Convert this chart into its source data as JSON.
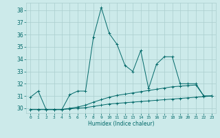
{
  "xlabel": "Humidex (Indice chaleur)",
  "x_values": [
    0,
    1,
    2,
    3,
    4,
    5,
    6,
    7,
    8,
    9,
    10,
    11,
    12,
    13,
    14,
    15,
    16,
    17,
    18,
    19,
    20,
    21,
    22,
    23
  ],
  "line1": [
    30.9,
    31.4,
    29.9,
    29.9,
    29.9,
    31.1,
    31.4,
    31.4,
    35.8,
    38.2,
    36.1,
    35.2,
    33.5,
    33.0,
    34.7,
    31.6,
    33.6,
    34.2,
    34.2,
    32.0,
    32.0,
    32.0,
    31.0,
    31.0
  ],
  "line2": [
    29.9,
    29.9,
    29.9,
    29.9,
    29.9,
    30.0,
    30.1,
    30.25,
    30.5,
    30.7,
    30.9,
    31.05,
    31.15,
    31.25,
    31.35,
    31.45,
    31.55,
    31.65,
    31.75,
    31.8,
    31.85,
    31.9,
    31.0,
    31.0
  ],
  "line3": [
    29.9,
    29.9,
    29.9,
    29.9,
    29.9,
    29.95,
    30.0,
    30.05,
    30.15,
    30.25,
    30.35,
    30.4,
    30.45,
    30.5,
    30.55,
    30.6,
    30.65,
    30.7,
    30.75,
    30.8,
    30.85,
    30.9,
    30.95,
    31.0
  ],
  "line_color": "#006868",
  "bg_color": "#cceaea",
  "grid_color": "#aacece",
  "ylim_min": 29.6,
  "ylim_max": 38.6,
  "yticks": [
    30,
    31,
    32,
    33,
    34,
    35,
    36,
    37,
    38
  ],
  "xticks": [
    0,
    1,
    2,
    3,
    4,
    5,
    6,
    7,
    8,
    9,
    10,
    11,
    12,
    13,
    14,
    15,
    16,
    17,
    18,
    19,
    20,
    21,
    22,
    23
  ]
}
